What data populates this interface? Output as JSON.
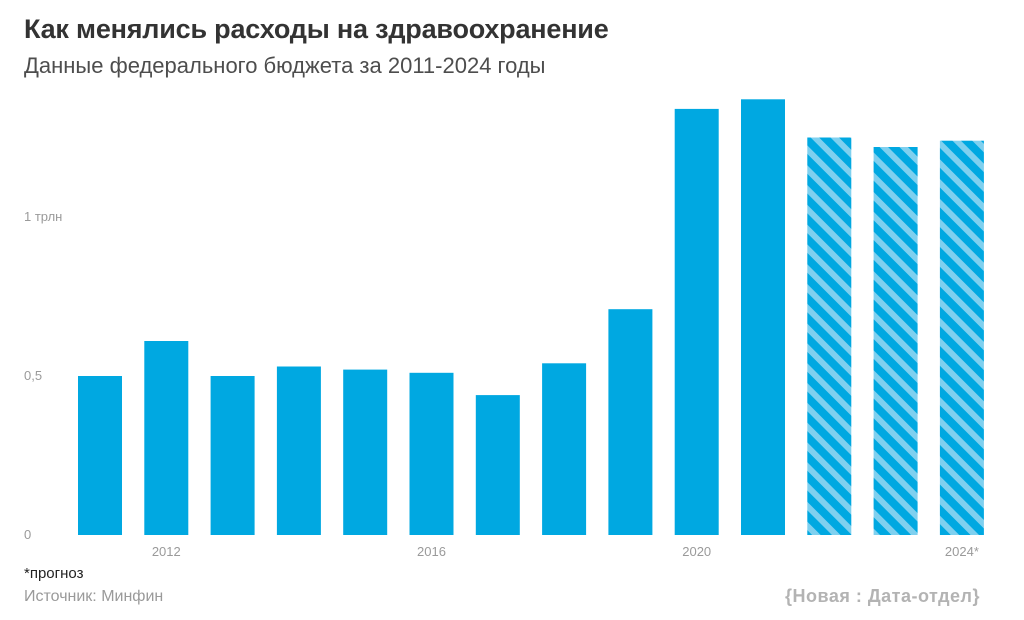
{
  "header": {
    "title": "Как менялись расходы на здравоохранение",
    "subtitle": "Данные федерального бюджета за 2011-2024 годы"
  },
  "footer": {
    "footnote": "*прогноз",
    "source": "Источник: Минфин",
    "brand": "{Новая : Дата-отдел}"
  },
  "colors": {
    "bar": "#00a8e1",
    "forecast_stripe_light": "#7fd0ef",
    "text_gray": "#9a9a9a"
  },
  "chart_data": {
    "type": "bar",
    "title": "Как менялись расходы на здравоохранение",
    "subtitle": "Данные федерального бюджета за 2011-2024 годы",
    "xlabel": "",
    "ylabel": "",
    "unit": "трлн руб.",
    "ylim": [
      0,
      1.4
    ],
    "grid": false,
    "years": [
      2011,
      2012,
      2013,
      2014,
      2015,
      2016,
      2017,
      2018,
      2019,
      2020,
      2021,
      2022,
      2023,
      2024
    ],
    "values": [
      0.5,
      0.61,
      0.5,
      0.53,
      0.52,
      0.51,
      0.44,
      0.54,
      0.71,
      1.34,
      1.37,
      1.25,
      1.22,
      1.24
    ],
    "forecast": [
      false,
      false,
      false,
      false,
      false,
      false,
      false,
      false,
      false,
      false,
      false,
      true,
      true,
      true
    ],
    "x_tick_labels": [
      {
        "index": 1,
        "text": "2012"
      },
      {
        "index": 5,
        "text": "2016"
      },
      {
        "index": 9,
        "text": "2020"
      },
      {
        "index": 13,
        "text": "2024*"
      }
    ],
    "y_ticks": [
      {
        "value": 0,
        "text": "0"
      },
      {
        "value": 0.5,
        "text": "0,5"
      },
      {
        "value": 1,
        "text": "1 трлн"
      }
    ]
  }
}
